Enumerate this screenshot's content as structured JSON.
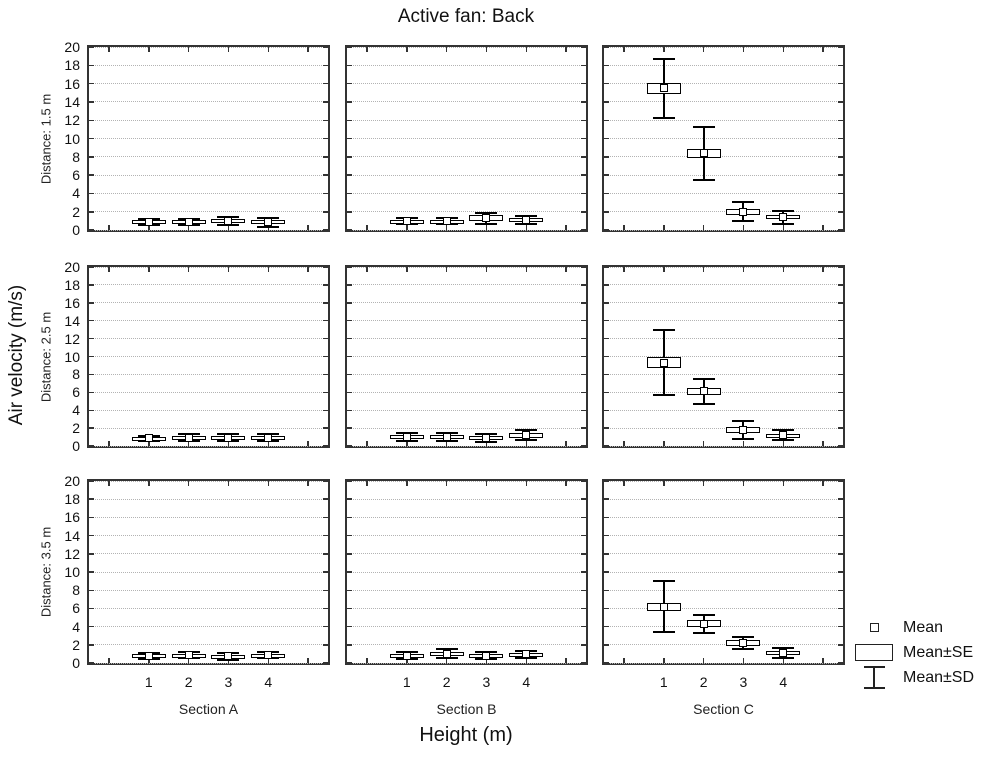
{
  "chart_data": {
    "type": "boxplot",
    "title": "Active fan: Back",
    "ylabel": "Air velocity (m/s)",
    "xlabel": "Height (m)",
    "ylim": [
      0,
      20
    ],
    "yticks": [
      0,
      2,
      4,
      6,
      8,
      10,
      12,
      14,
      16,
      18,
      20
    ],
    "x_categories": [
      "1",
      "2",
      "3",
      "4"
    ],
    "sections": [
      "Section A",
      "Section B",
      "Section C"
    ],
    "grid": "horizontal-dotted",
    "legend_position": "bottom-right",
    "rows": [
      {
        "label": "Distance: 1.5 m",
        "panels": [
          {
            "section": "Section A",
            "points": [
              {
                "mean": 0.9,
                "se": 0.15,
                "sd": 0.3
              },
              {
                "mean": 0.9,
                "se": 0.15,
                "sd": 0.3
              },
              {
                "mean": 1.0,
                "se": 0.2,
                "sd": 0.45
              },
              {
                "mean": 0.85,
                "se": 0.2,
                "sd": 0.5
              }
            ]
          },
          {
            "section": "Section B",
            "points": [
              {
                "mean": 1.0,
                "se": 0.15,
                "sd": 0.35
              },
              {
                "mean": 1.0,
                "se": 0.15,
                "sd": 0.35
              },
              {
                "mean": 1.3,
                "se": 0.3,
                "sd": 0.6
              },
              {
                "mean": 1.1,
                "se": 0.25,
                "sd": 0.45
              }
            ]
          },
          {
            "section": "Section C",
            "points": [
              {
                "mean": 15.5,
                "se": 0.6,
                "sd": 3.2
              },
              {
                "mean": 8.4,
                "se": 0.5,
                "sd": 2.9
              },
              {
                "mean": 2.0,
                "se": 0.3,
                "sd": 1.05
              },
              {
                "mean": 1.4,
                "se": 0.25,
                "sd": 0.7
              }
            ]
          }
        ]
      },
      {
        "label": "Distance: 2.5 m",
        "panels": [
          {
            "section": "Section A",
            "points": [
              {
                "mean": 0.85,
                "se": 0.15,
                "sd": 0.3
              },
              {
                "mean": 0.95,
                "se": 0.15,
                "sd": 0.35
              },
              {
                "mean": 0.95,
                "se": 0.15,
                "sd": 0.35
              },
              {
                "mean": 0.95,
                "se": 0.15,
                "sd": 0.35
              }
            ]
          },
          {
            "section": "Section B",
            "points": [
              {
                "mean": 1.0,
                "se": 0.2,
                "sd": 0.45
              },
              {
                "mean": 1.05,
                "se": 0.2,
                "sd": 0.45
              },
              {
                "mean": 0.95,
                "se": 0.15,
                "sd": 0.45
              },
              {
                "mean": 1.2,
                "se": 0.25,
                "sd": 0.55
              }
            ]
          },
          {
            "section": "Section C",
            "points": [
              {
                "mean": 9.3,
                "se": 0.65,
                "sd": 3.65
              },
              {
                "mean": 6.1,
                "se": 0.4,
                "sd": 1.35
              },
              {
                "mean": 1.8,
                "se": 0.3,
                "sd": 1.0
              },
              {
                "mean": 1.2,
                "se": 0.2,
                "sd": 0.55
              }
            ]
          }
        ]
      },
      {
        "label": "Distance: 3.5 m",
        "panels": [
          {
            "section": "Section A",
            "points": [
              {
                "mean": 0.8,
                "se": 0.15,
                "sd": 0.35
              },
              {
                "mean": 0.85,
                "se": 0.15,
                "sd": 0.35
              },
              {
                "mean": 0.75,
                "se": 0.15,
                "sd": 0.4
              },
              {
                "mean": 0.85,
                "se": 0.15,
                "sd": 0.35
              }
            ]
          },
          {
            "section": "Section B",
            "points": [
              {
                "mean": 0.8,
                "se": 0.15,
                "sd": 0.4
              },
              {
                "mean": 1.0,
                "se": 0.2,
                "sd": 0.5
              },
              {
                "mean": 0.8,
                "se": 0.15,
                "sd": 0.4
              },
              {
                "mean": 0.95,
                "se": 0.2,
                "sd": 0.4
              }
            ]
          },
          {
            "section": "Section C",
            "points": [
              {
                "mean": 6.2,
                "se": 0.45,
                "sd": 2.8
              },
              {
                "mean": 4.3,
                "se": 0.4,
                "sd": 1.0
              },
              {
                "mean": 2.2,
                "se": 0.3,
                "sd": 0.7
              },
              {
                "mean": 1.1,
                "se": 0.25,
                "sd": 0.5
              }
            ]
          }
        ]
      }
    ],
    "legend": [
      {
        "icon": "mean-square-icon",
        "label": "Mean"
      },
      {
        "icon": "mean-se-box-icon",
        "label": "Mean±SE"
      },
      {
        "icon": "mean-sd-whisker-icon",
        "label": "Mean±SD"
      }
    ]
  }
}
